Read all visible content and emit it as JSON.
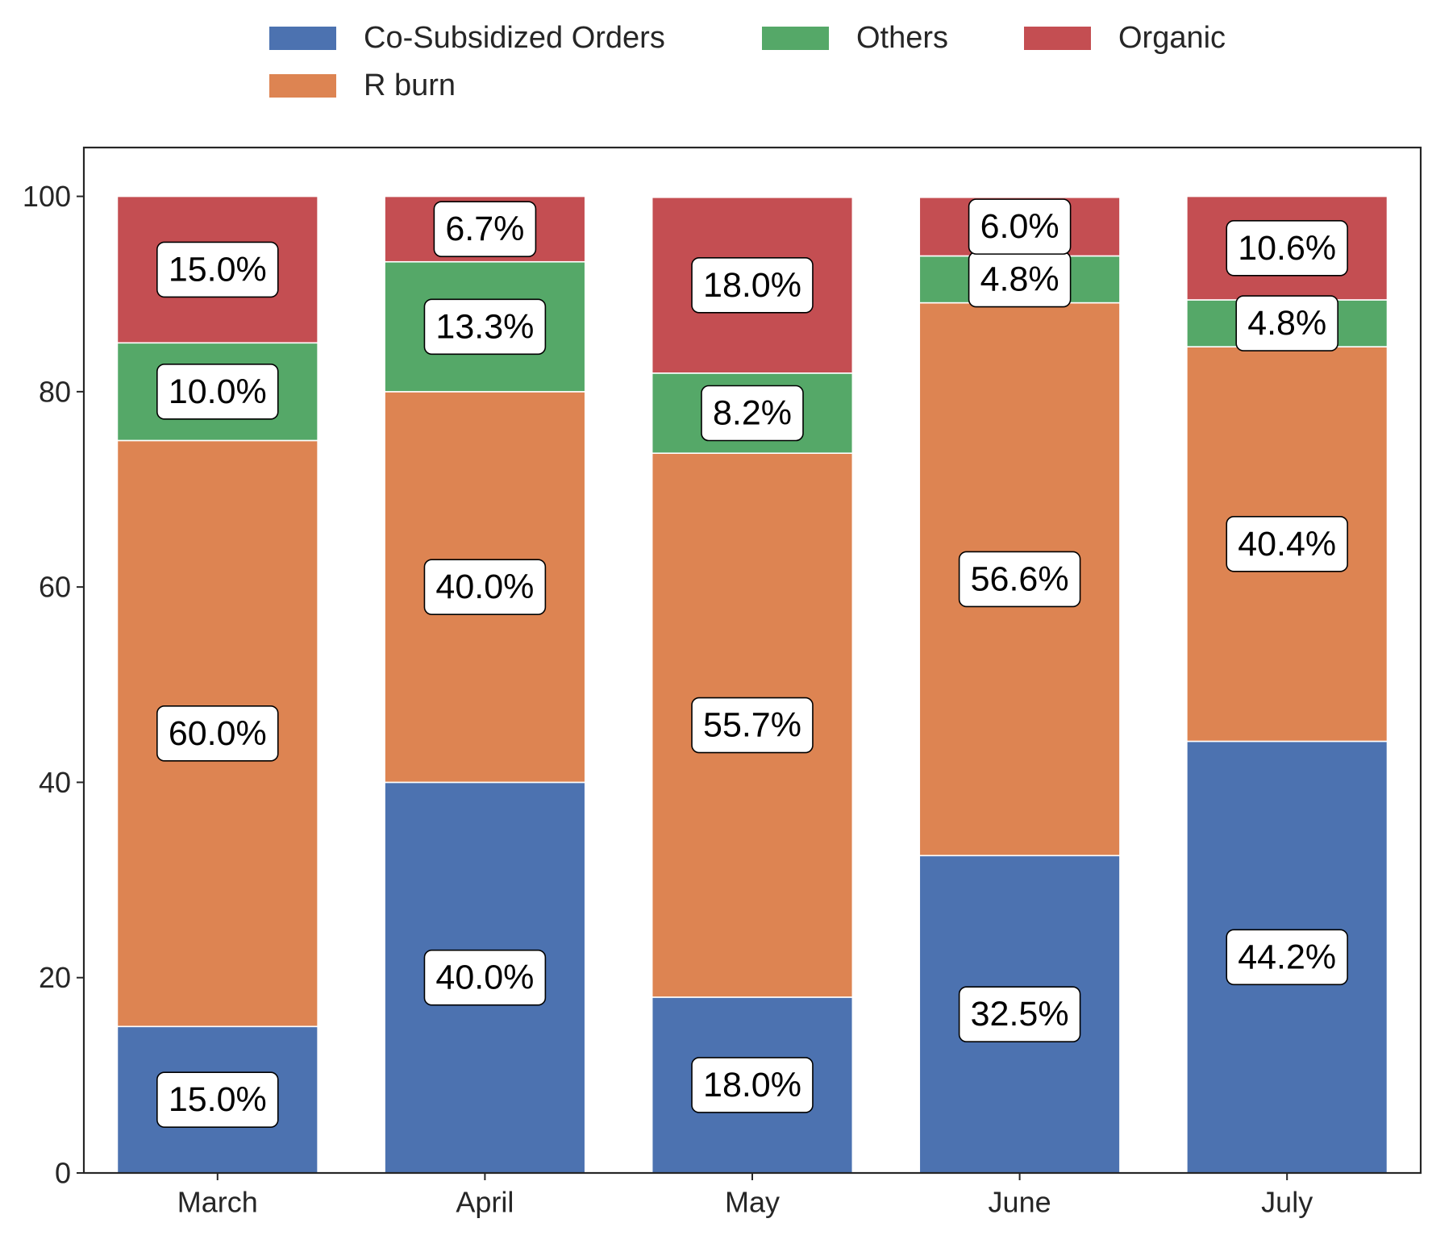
{
  "chart_data": {
    "type": "bar",
    "stacked": true,
    "categories": [
      "March",
      "April",
      "May",
      "June",
      "July"
    ],
    "series": [
      {
        "name": "Co-Subsidized Orders",
        "color": "#4c72b0",
        "values": [
          15.0,
          40.0,
          18.0,
          32.5,
          44.2
        ]
      },
      {
        "name": "R burn",
        "color": "#dd8452",
        "values": [
          60.0,
          40.0,
          55.7,
          56.6,
          40.4
        ]
      },
      {
        "name": "Others",
        "color": "#55a868",
        "values": [
          10.0,
          13.3,
          8.2,
          4.8,
          4.8
        ]
      },
      {
        "name": "Organic",
        "color": "#c44e52",
        "values": [
          15.0,
          6.7,
          18.0,
          6.0,
          10.6
        ]
      }
    ],
    "data_labels": [
      [
        "15.0%",
        "40.0%",
        "18.0%",
        "32.5%",
        "44.2%"
      ],
      [
        "60.0%",
        "40.0%",
        "55.7%",
        "56.6%",
        "40.4%"
      ],
      [
        "10.0%",
        "13.3%",
        "8.2%",
        "4.8%",
        "4.8%"
      ],
      [
        "15.0%",
        "6.7%",
        "18.0%",
        "6.0%",
        "10.6%"
      ]
    ],
    "ylim": [
      0,
      105
    ],
    "yticks": [
      0,
      20,
      40,
      60,
      80,
      100
    ],
    "grid": false,
    "legend_position": "top-center"
  }
}
